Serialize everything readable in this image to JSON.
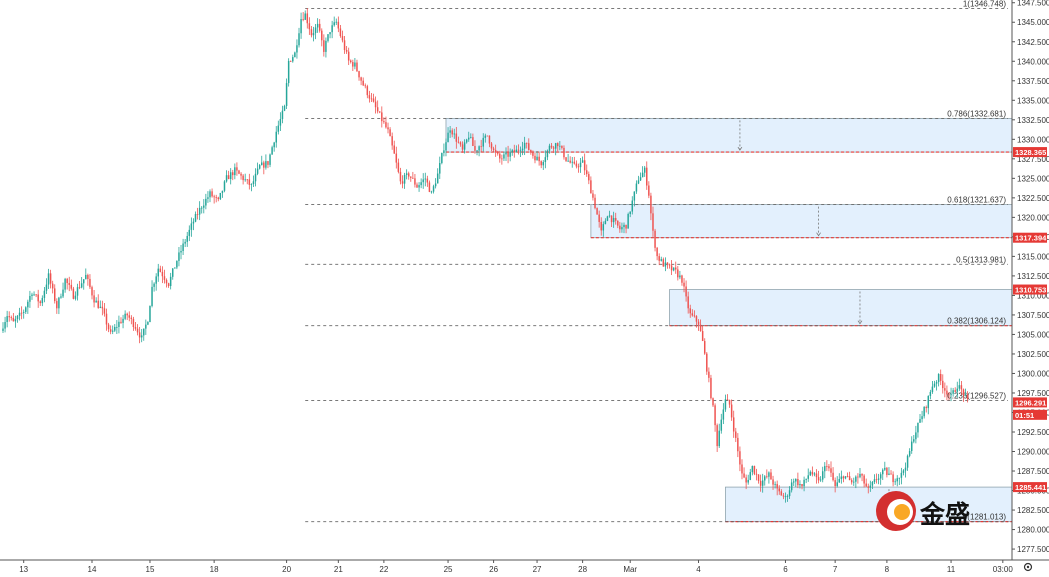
{
  "chart_data": {
    "type": "candlestick",
    "instrument_unit": "price",
    "ylim": [
      1276.5,
      1348.0
    ],
    "y_ticks": [
      1347.5,
      1345.0,
      1342.5,
      1340.0,
      1337.5,
      1335.0,
      1332.5,
      1330.0,
      1327.5,
      1325.0,
      1322.5,
      1320.0,
      1317.5,
      1315.0,
      1312.5,
      1310.0,
      1307.5,
      1305.0,
      1302.5,
      1300.0,
      1297.5,
      1295.0,
      1292.5,
      1290.0,
      1287.5,
      1285.0,
      1282.5,
      1280.0,
      1277.5
    ],
    "y_tick_labels": [
      "1347.500",
      "1345.000",
      "1342.500",
      "1340.000",
      "1337.500",
      "1335.000",
      "1332.500",
      "1330.000",
      "1327.500",
      "1325.000",
      "1322.500",
      "1320.000",
      "1317.500",
      "1315.000",
      "1312.500",
      "1310.000",
      "1307.500",
      "1305.000",
      "1302.500",
      "1300.000",
      "1297.500",
      "1295.000",
      "1292.500",
      "1290.000",
      "1287.500",
      "1285.000",
      "1282.500",
      "1280.000",
      "1277.500"
    ],
    "x_ticks": [
      {
        "label": "13",
        "bar": 10
      },
      {
        "label": "14",
        "bar": 43
      },
      {
        "label": "15",
        "bar": 71
      },
      {
        "label": "18",
        "bar": 102
      },
      {
        "label": "20",
        "bar": 137
      },
      {
        "label": "21",
        "bar": 162
      },
      {
        "label": "22",
        "bar": 184
      },
      {
        "label": "25",
        "bar": 215
      },
      {
        "label": "26",
        "bar": 237
      },
      {
        "label": "27",
        "bar": 258
      },
      {
        "label": "28",
        "bar": 280
      },
      {
        "label": "Mar",
        "bar": 303
      },
      {
        "label": "4",
        "bar": 336
      },
      {
        "label": "6",
        "bar": 378
      },
      {
        "label": "7",
        "bar": 402
      },
      {
        "label": "8",
        "bar": 427
      },
      {
        "label": "11",
        "bar": 458
      },
      {
        "label": "03:00",
        "bar": 483
      }
    ],
    "anchors": [
      [
        0,
        1306.2
      ],
      [
        2,
        1307.5
      ],
      [
        5,
        1306.5
      ],
      [
        10,
        1308.0
      ],
      [
        14,
        1310.5
      ],
      [
        18,
        1309.0
      ],
      [
        22,
        1312.5
      ],
      [
        26,
        1308.5
      ],
      [
        30,
        1312.0
      ],
      [
        34,
        1310.0
      ],
      [
        40,
        1312.5
      ],
      [
        44,
        1309.5
      ],
      [
        48,
        1308.0
      ],
      [
        52,
        1305.0
      ],
      [
        56,
        1306.5
      ],
      [
        60,
        1307.5
      ],
      [
        64,
        1306.0
      ],
      [
        67,
        1304.5
      ],
      [
        70,
        1307.0
      ],
      [
        72,
        1311.0
      ],
      [
        75,
        1313.5
      ],
      [
        80,
        1311.5
      ],
      [
        84,
        1314.5
      ],
      [
        88,
        1317.0
      ],
      [
        92,
        1319.5
      ],
      [
        96,
        1321.5
      ],
      [
        100,
        1323.0
      ],
      [
        104,
        1322.0
      ],
      [
        108,
        1325.0
      ],
      [
        112,
        1326.0
      ],
      [
        116,
        1325.0
      ],
      [
        120,
        1324.0
      ],
      [
        124,
        1326.5
      ],
      [
        128,
        1327.0
      ],
      [
        132,
        1331.0
      ],
      [
        136,
        1334.0
      ],
      [
        138,
        1340.0
      ],
      [
        141,
        1341.0
      ],
      [
        144,
        1345.5
      ],
      [
        146,
        1346.0
      ],
      [
        149,
        1343.5
      ],
      [
        152,
        1344.5
      ],
      [
        155,
        1341.5
      ],
      [
        158,
        1344.0
      ],
      [
        161,
        1345.0
      ],
      [
        164,
        1342.5
      ],
      [
        167,
        1340.0
      ],
      [
        170,
        1339.5
      ],
      [
        174,
        1337.0
      ],
      [
        178,
        1335.0
      ],
      [
        182,
        1333.0
      ],
      [
        186,
        1331.0
      ],
      [
        189,
        1328.0
      ],
      [
        192,
        1324.5
      ],
      [
        196,
        1325.5
      ],
      [
        200,
        1324.0
      ],
      [
        204,
        1325.0
      ],
      [
        207,
        1323.0
      ],
      [
        210,
        1325.5
      ],
      [
        213,
        1329.0
      ],
      [
        216,
        1331.5
      ],
      [
        219,
        1330.0
      ],
      [
        222,
        1328.5
      ],
      [
        225,
        1330.5
      ],
      [
        228,
        1328.5
      ],
      [
        231,
        1329.5
      ],
      [
        234,
        1330.5
      ],
      [
        237,
        1328.5
      ],
      [
        240,
        1327.5
      ],
      [
        244,
        1328.0
      ],
      [
        248,
        1328.5
      ],
      [
        252,
        1329.5
      ],
      [
        256,
        1328.0
      ],
      [
        260,
        1327.0
      ],
      [
        264,
        1329.0
      ],
      [
        268,
        1329.5
      ],
      [
        272,
        1327.5
      ],
      [
        276,
        1326.5
      ],
      [
        280,
        1327.0
      ],
      [
        283,
        1324.5
      ],
      [
        286,
        1321.5
      ],
      [
        289,
        1318.0
      ],
      [
        292,
        1320.5
      ],
      [
        295,
        1319.5
      ],
      [
        298,
        1318.5
      ],
      [
        301,
        1319.0
      ],
      [
        304,
        1322.0
      ],
      [
        307,
        1325.0
      ],
      [
        310,
        1326.0
      ],
      [
        312,
        1323.0
      ],
      [
        314,
        1318.0
      ],
      [
        316,
        1315.0
      ],
      [
        319,
        1314.0
      ],
      [
        322,
        1313.5
      ],
      [
        325,
        1313.0
      ],
      [
        328,
        1312.0
      ],
      [
        330,
        1309.5
      ],
      [
        332,
        1307.5
      ],
      [
        334,
        1307.0
      ],
      [
        336,
        1306.5
      ],
      [
        338,
        1304.0
      ],
      [
        341,
        1299.0
      ],
      [
        343,
        1295.5
      ],
      [
        345,
        1291.0
      ],
      [
        347,
        1294.5
      ],
      [
        349,
        1296.5
      ],
      [
        351,
        1296.0
      ],
      [
        353,
        1293.0
      ],
      [
        355,
        1290.0
      ],
      [
        357,
        1287.0
      ],
      [
        359,
        1286.0
      ],
      [
        362,
        1288.0
      ],
      [
        366,
        1286.0
      ],
      [
        370,
        1287.0
      ],
      [
        374,
        1285.0
      ],
      [
        378,
        1284.0
      ],
      [
        382,
        1286.5
      ],
      [
        386,
        1285.5
      ],
      [
        390,
        1287.5
      ],
      [
        394,
        1286.0
      ],
      [
        398,
        1288.5
      ],
      [
        402,
        1285.5
      ],
      [
        406,
        1287.0
      ],
      [
        410,
        1286.0
      ],
      [
        414,
        1287.0
      ],
      [
        418,
        1285.0
      ],
      [
        422,
        1286.5
      ],
      [
        426,
        1287.5
      ],
      [
        430,
        1286.5
      ],
      [
        434,
        1287.0
      ],
      [
        437,
        1289.0
      ],
      [
        440,
        1292.0
      ],
      [
        443,
        1294.0
      ],
      [
        446,
        1296.0
      ],
      [
        449,
        1298.5
      ],
      [
        452,
        1299.5
      ],
      [
        455,
        1298.0
      ],
      [
        458,
        1297.0
      ],
      [
        461,
        1298.5
      ],
      [
        464,
        1297.5
      ],
      [
        466,
        1296.3
      ]
    ],
    "total_bars": 467,
    "fibonacci": {
      "title": "",
      "levels": [
        {
          "label": "1(1346.748)",
          "value": 1346.748
        },
        {
          "label": "0.786(1332.681)",
          "value": 1332.681
        },
        {
          "label": "0.618(1321.637)",
          "value": 1321.637
        },
        {
          "label": "0.5(1313.981)",
          "value": 1313.981
        },
        {
          "label": "0.382(1306.124)",
          "value": 1306.124
        },
        {
          "label": "0.236(1296.527)",
          "value": 1296.527
        },
        {
          "label": "0(1281.013)",
          "value": 1281.013
        }
      ],
      "line_start_bar": 146
    },
    "zones": [
      {
        "top": 1332.681,
        "bottom": 1328.365,
        "start_bar": 214,
        "end_bar": 494,
        "arrow_bar": 356
      },
      {
        "top": 1321.637,
        "bottom": 1317.394,
        "start_bar": 284,
        "end_bar": 494,
        "arrow_bar": 394
      },
      {
        "top": 1310.753,
        "bottom": 1306.124,
        "start_bar": 322,
        "end_bar": 494,
        "arrow_bar": 414
      },
      {
        "top": 1285.441,
        "bottom": 1281.013,
        "start_bar": 349,
        "end_bar": 494,
        "arrow_bar": 428
      }
    ],
    "price_tags": [
      {
        "label": "1328.365",
        "value": 1328.365
      },
      {
        "label": "1317.394",
        "value": 1317.394
      },
      {
        "label": "1310.753",
        "value": 1310.753
      },
      {
        "label": "1296.291",
        "value": 1296.291
      },
      {
        "label": "01:51",
        "value": 1294.7
      },
      {
        "label": "1285.441",
        "value": 1285.441
      }
    ],
    "colors": {
      "up": "#26a69a",
      "down": "#ef5350",
      "zone_fill": "#e3f0fd",
      "zone_border": "#90a4ae",
      "level_line": "#666666",
      "tag_bg": "#e53935"
    }
  },
  "logo": {
    "text": "金盛"
  }
}
